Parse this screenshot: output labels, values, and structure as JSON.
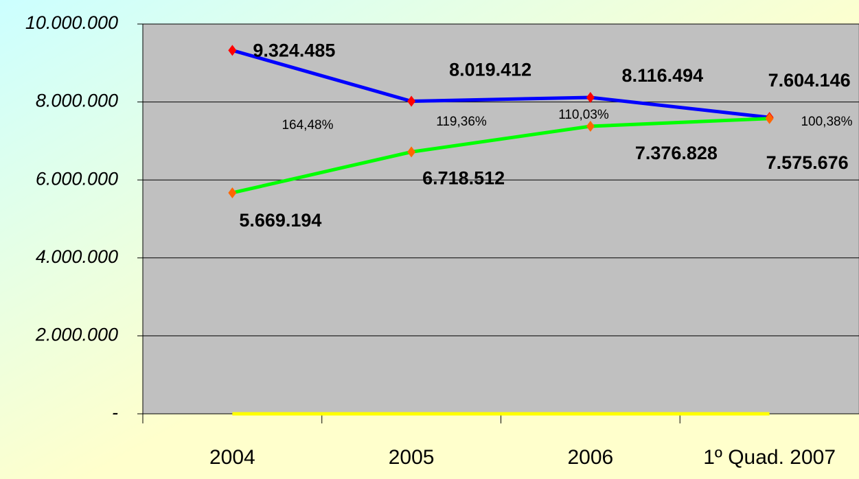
{
  "chart_data": {
    "type": "line",
    "categories": [
      "2004",
      "2005",
      "2006",
      "1º Quad. 2007"
    ],
    "series": [
      {
        "color": "#0000ff",
        "marker_color": "#ff0000",
        "values": [
          9324485,
          8019412,
          8116494,
          7604146
        ],
        "value_labels": [
          "9.324.485",
          "8.019.412",
          "8.116.494",
          "7.604.146"
        ]
      },
      {
        "color": "#00ff00",
        "marker_color": "#ff6600",
        "values": [
          5669194,
          6718512,
          7376828,
          7575676
        ],
        "value_labels": [
          "5.669.194",
          "6.718.512",
          "7.376.828",
          "7.575.676"
        ]
      },
      {
        "color": "#ffff00",
        "values": [
          0,
          0,
          0,
          0
        ]
      }
    ],
    "annotations": [
      {
        "value": 164.48,
        "label": "164,48%"
      },
      {
        "value": 119.36,
        "label": "119,36%"
      },
      {
        "value": 110.03,
        "label": "110,03%"
      },
      {
        "value": 100.38,
        "label": "100,38%"
      }
    ],
    "ylim": [
      0,
      10000000
    ],
    "yticks": [
      {
        "value": 0,
        "label": "-"
      },
      {
        "value": 2000000,
        "label": "2.000.000"
      },
      {
        "value": 4000000,
        "label": "4.000.000"
      },
      {
        "value": 6000000,
        "label": "6.000.000"
      },
      {
        "value": 8000000,
        "label": "8.000.000"
      },
      {
        "value": 10000000,
        "label": "10.000.000"
      }
    ],
    "grid": true
  }
}
